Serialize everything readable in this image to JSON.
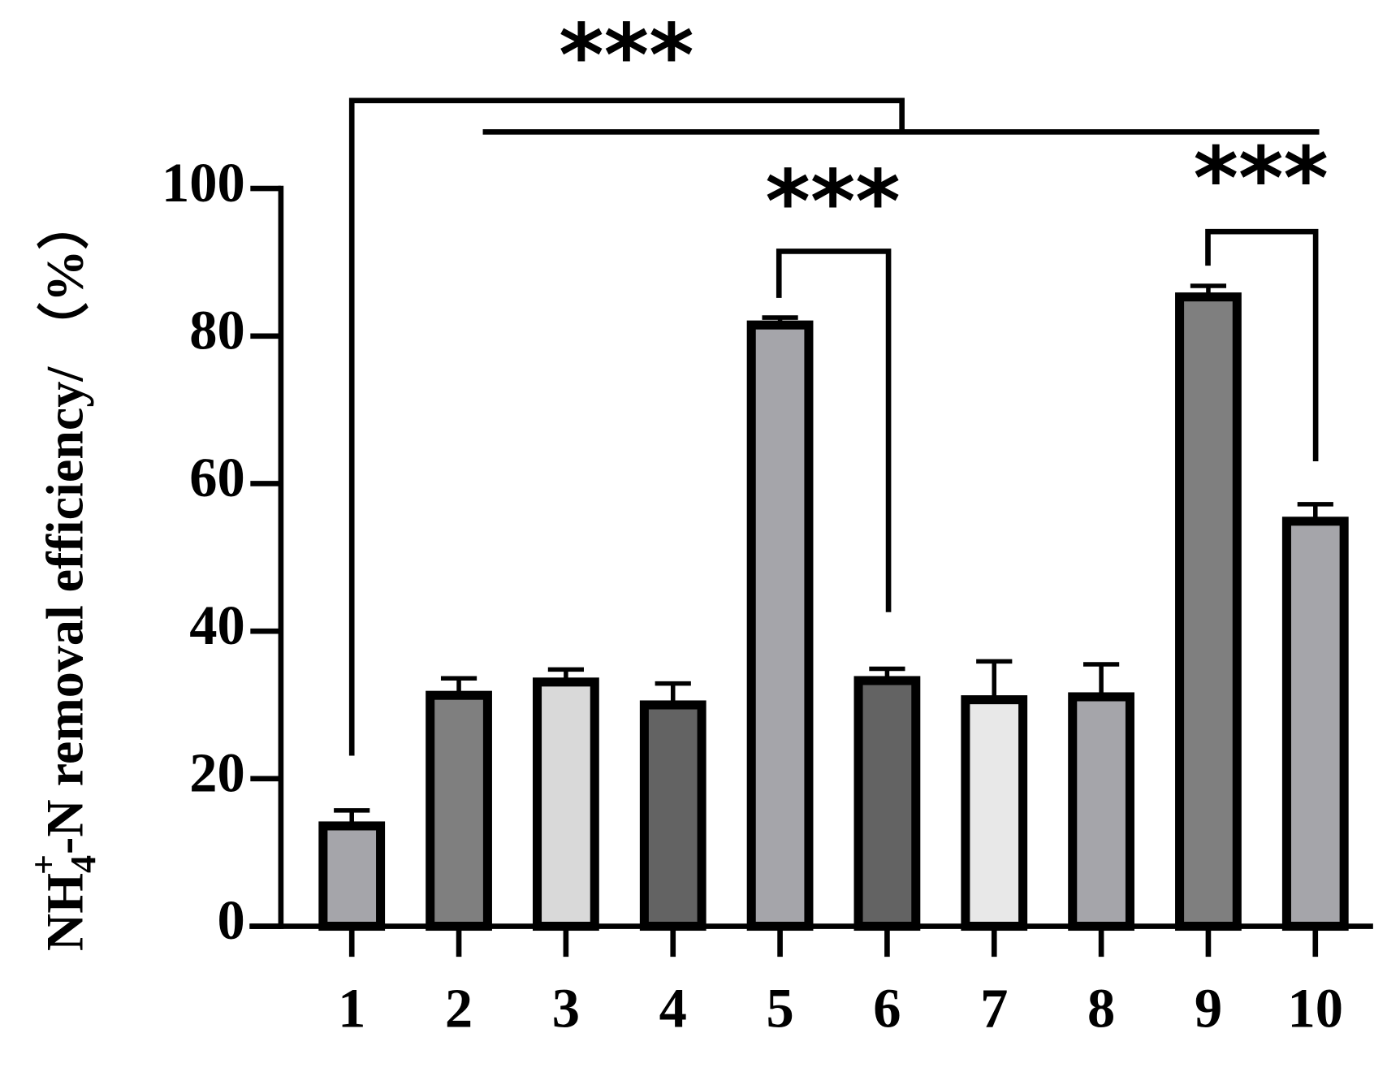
{
  "chart_data": {
    "type": "bar",
    "y_label": {
      "main": "NH",
      "sub": "4",
      "sup": "+",
      "rest": "-N removal efficiency/ （%）"
    },
    "categories": [
      "1",
      "2",
      "3",
      "4",
      "5",
      "6",
      "7",
      "8",
      "9",
      "10"
    ],
    "values": [
      13.6,
      31.3,
      33.1,
      30.0,
      81.5,
      33.3,
      30.7,
      31.1,
      85.3,
      54.9
    ],
    "errors": [
      2.1,
      2.3,
      1.7,
      2.9,
      1.0,
      1.6,
      5.2,
      4.4,
      1.5,
      2.3
    ],
    "colors": [
      "#a5a5aa",
      "#7f7f7f",
      "#d9d9d9",
      "#636363",
      "#a5a5aa",
      "#636363",
      "#e8e8e8",
      "#a5a5aa",
      "#7f7f7f",
      "#a5a5aa"
    ],
    "ylim": [
      0,
      100
    ],
    "yticks": [
      0,
      20,
      40,
      60,
      80,
      100
    ],
    "annotations": [
      "***",
      "***",
      "***"
    ]
  }
}
